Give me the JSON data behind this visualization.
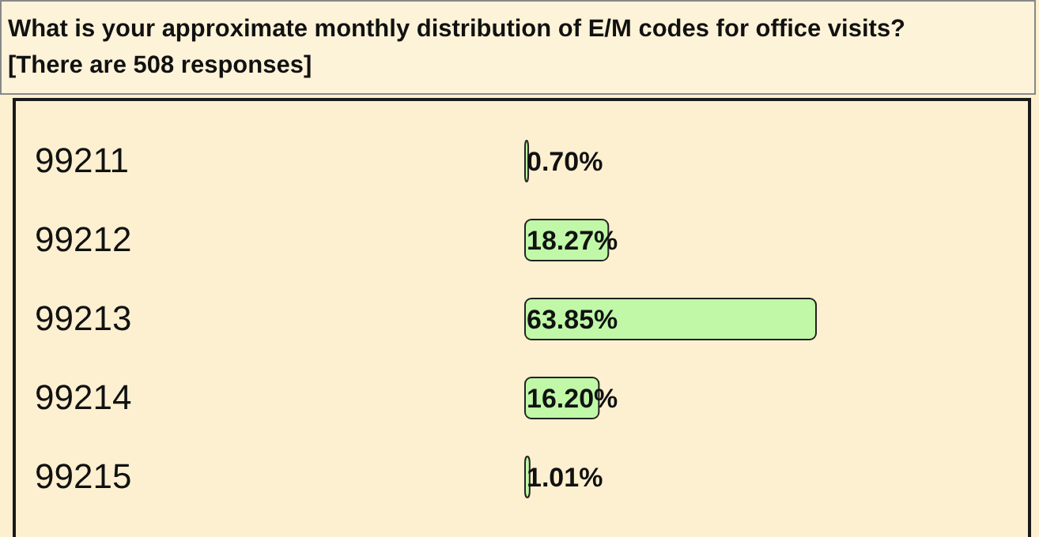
{
  "chart_data": {
    "type": "bar",
    "orientation": "horizontal",
    "title": "What is your approximate monthly distribution of E/M codes for office visits?",
    "subtitle": "[There are 508 responses]",
    "categories": [
      "99211",
      "99212",
      "99213",
      "99214",
      "99215"
    ],
    "series": [
      {
        "color": "#c0f8a8",
        "values": [
          0.7,
          18.27,
          63.85,
          16.2,
          1.01
        ],
        "value_labels": [
          "0.70%",
          "18.27%",
          "63.85%",
          "16.20%",
          "1.01%"
        ]
      }
    ]
  }
}
